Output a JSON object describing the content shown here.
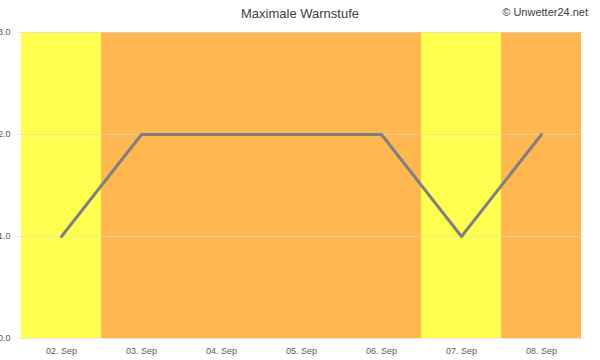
{
  "chart_data": {
    "type": "line",
    "title": "Maximale Warnstufe",
    "annotations": [
      "© Unwetter24.net"
    ],
    "categories": [
      "02. Sep",
      "03. Sep",
      "04. Sep",
      "05. Sep",
      "06. Sep",
      "07. Sep",
      "08. Sep"
    ],
    "values": [
      1,
      2,
      2,
      2,
      2,
      1,
      2
    ],
    "color": "#808080",
    "colors": [
      "#ffff4f",
      "#ffb74f",
      "#ffb74f",
      "#ffb74f",
      "#ffb74f",
      "#ffff4f",
      "#ffb74f"
    ],
    "ylim": [
      0,
      3
    ],
    "yticks": [
      0,
      1,
      2,
      3
    ],
    "grid": true
  }
}
